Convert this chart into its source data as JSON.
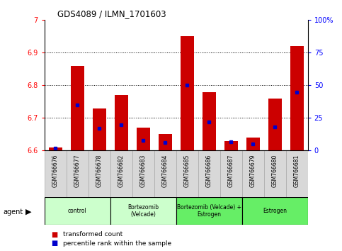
{
  "title": "GDS4089 / ILMN_1701603",
  "samples": [
    "GSM766676",
    "GSM766677",
    "GSM766678",
    "GSM766682",
    "GSM766683",
    "GSM766684",
    "GSM766685",
    "GSM766686",
    "GSM766687",
    "GSM766679",
    "GSM766680",
    "GSM766681"
  ],
  "transformed_count": [
    6.61,
    6.86,
    6.73,
    6.77,
    6.67,
    6.65,
    6.95,
    6.78,
    6.63,
    6.64,
    6.76,
    6.92
  ],
  "percentile_rank": [
    2,
    35,
    17,
    20,
    8,
    6,
    50,
    22,
    7,
    5,
    18,
    45
  ],
  "groups": [
    {
      "label": "control",
      "start": 0,
      "end": 3,
      "color": "#ccffcc"
    },
    {
      "label": "Bortezomib\n(Velcade)",
      "start": 3,
      "end": 6,
      "color": "#ccffcc"
    },
    {
      "label": "Bortezomib (Velcade) +\nEstrogen",
      "start": 6,
      "end": 9,
      "color": "#66ee66"
    },
    {
      "label": "Estrogen",
      "start": 9,
      "end": 12,
      "color": "#66ee66"
    }
  ],
  "ylim_left": [
    6.6,
    7.0
  ],
  "ylim_right": [
    0,
    100
  ],
  "yticks_left": [
    6.6,
    6.7,
    6.8,
    6.9,
    7.0
  ],
  "ytick_labels_left": [
    "6.6",
    "6.7",
    "6.8",
    "6.9",
    "7"
  ],
  "yticks_right": [
    0,
    25,
    50,
    75,
    100
  ],
  "ytick_labels_right": [
    "0",
    "25",
    "50",
    "75",
    "100%"
  ],
  "bar_color": "#cc0000",
  "percentile_color": "#0000cc",
  "bar_width": 0.6,
  "legend_items": [
    "transformed count",
    "percentile rank within the sample"
  ],
  "legend_colors": [
    "#cc0000",
    "#0000cc"
  ],
  "agent_label": "agent",
  "grid_lines": [
    6.7,
    6.8,
    6.9
  ],
  "group_light_color": "#ccffcc",
  "group_dark_color": "#66ee66"
}
